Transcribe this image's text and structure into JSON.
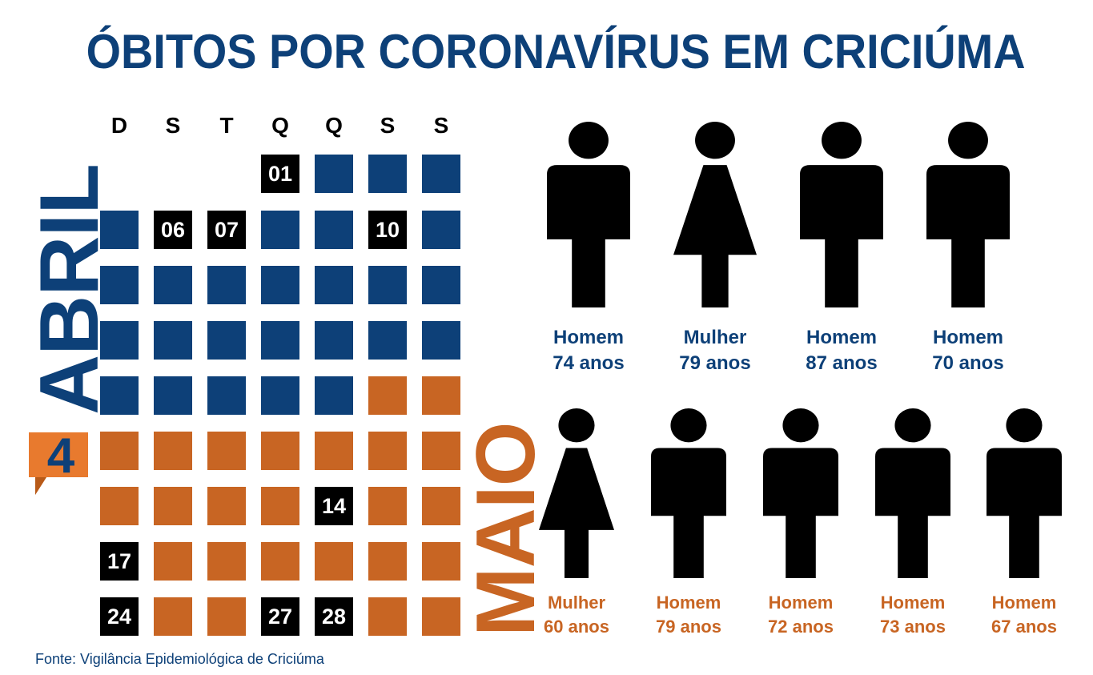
{
  "title": "ÓBITOS POR CORONAVÍRUS EM CRICIÚMA",
  "weekdays": [
    "D",
    "S",
    "T",
    "Q",
    "Q",
    "S",
    "S"
  ],
  "months": {
    "april": "ABRIL",
    "may": "MAIO"
  },
  "logo_text": "4",
  "calendar_rows": [
    [
      null,
      null,
      null,
      {
        "month": "april",
        "label": "01"
      },
      {
        "month": "april"
      },
      {
        "month": "april"
      },
      {
        "month": "april"
      }
    ],
    [
      {
        "month": "april"
      },
      {
        "month": "april",
        "label": "06"
      },
      {
        "month": "april",
        "label": "07"
      },
      {
        "month": "april"
      },
      {
        "month": "april"
      },
      {
        "month": "april",
        "label": "10"
      },
      {
        "month": "april"
      }
    ],
    [
      {
        "month": "april"
      },
      {
        "month": "april"
      },
      {
        "month": "april"
      },
      {
        "month": "april"
      },
      {
        "month": "april"
      },
      {
        "month": "april"
      },
      {
        "month": "april"
      }
    ],
    [
      {
        "month": "april"
      },
      {
        "month": "april"
      },
      {
        "month": "april"
      },
      {
        "month": "april"
      },
      {
        "month": "april"
      },
      {
        "month": "april"
      },
      {
        "month": "april"
      }
    ],
    [
      {
        "month": "april"
      },
      {
        "month": "april"
      },
      {
        "month": "april"
      },
      {
        "month": "april"
      },
      {
        "month": "april"
      },
      {
        "month": "may"
      },
      {
        "month": "may"
      }
    ],
    [
      {
        "month": "may"
      },
      {
        "month": "may"
      },
      {
        "month": "may"
      },
      {
        "month": "may"
      },
      {
        "month": "may"
      },
      {
        "month": "may"
      },
      {
        "month": "may"
      }
    ],
    [
      {
        "month": "may"
      },
      {
        "month": "may"
      },
      {
        "month": "may"
      },
      {
        "month": "may"
      },
      {
        "month": "may",
        "label": "14"
      },
      {
        "month": "may"
      },
      {
        "month": "may"
      }
    ],
    [
      {
        "month": "may",
        "label": "17"
      },
      {
        "month": "may"
      },
      {
        "month": "may"
      },
      {
        "month": "may"
      },
      {
        "month": "may"
      },
      {
        "month": "may"
      },
      {
        "month": "may"
      }
    ],
    [
      {
        "month": "may",
        "label": "24"
      },
      {
        "month": "may"
      },
      {
        "month": "may"
      },
      {
        "month": "may",
        "label": "27"
      },
      {
        "month": "may",
        "label": "28"
      },
      {
        "month": "may"
      },
      {
        "month": "may"
      }
    ]
  ],
  "victims_april": [
    {
      "sex": "male",
      "gender": "Homem",
      "age": "74 anos"
    },
    {
      "sex": "female",
      "gender": "Mulher",
      "age": "79 anos"
    },
    {
      "sex": "male",
      "gender": "Homem",
      "age": "87 anos"
    },
    {
      "sex": "male",
      "gender": "Homem",
      "age": "70 anos"
    }
  ],
  "victims_may": [
    {
      "sex": "female",
      "gender": "Mulher",
      "age": "60 anos"
    },
    {
      "sex": "male",
      "gender": "Homem",
      "age": "79 anos"
    },
    {
      "sex": "male",
      "gender": "Homem",
      "age": "72 anos"
    },
    {
      "sex": "male",
      "gender": "Homem",
      "age": "73 anos"
    },
    {
      "sex": "male",
      "gender": "Homem",
      "age": "67 anos"
    }
  ],
  "colors": {
    "blue": "#0d4078",
    "orange": "#c86523",
    "black": "#000000"
  },
  "source": "Fonte: Vigilância Epidemiológica de Criciúma"
}
